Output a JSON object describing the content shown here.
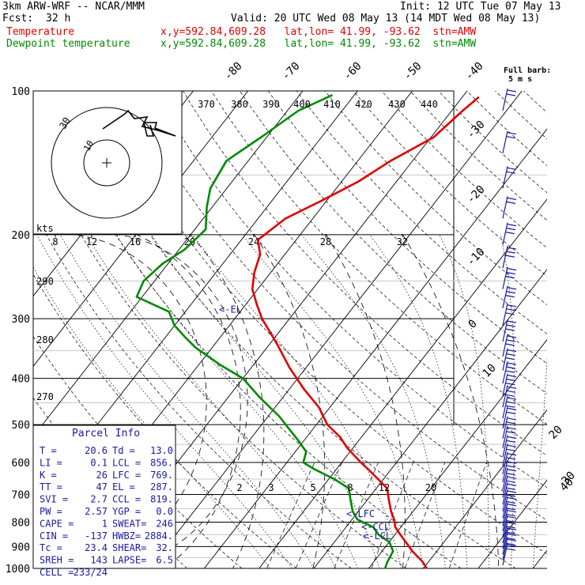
{
  "header": {
    "model": "3km ARW-WRF -- NCAR/MMM",
    "init": "Init: 12 UTC Tue 07 May 13",
    "fcst_label": "Fcst:",
    "fcst_value": "32 h",
    "valid": "Valid: 20 UTC Wed 08 May 13 (14 MDT Wed 08 May 13)",
    "temp_label": "Temperature",
    "temp_info": "x,y=592.84,609.28   lat,lon= 41.99, -93.62  stn=AMW",
    "dew_label": "Dewpoint temperature",
    "dew_info": "x,y=592.84,609.28   lat,lon= 41.99, -93.62  stn=AMW"
  },
  "colors": {
    "temperature": "#e00000",
    "dewpoint": "#008a00",
    "parcel_text": "#1a1aa0",
    "barbs": "#1a1aa0"
  },
  "chart_data": {
    "type": "line",
    "pressure_levels": [
      100,
      200,
      300,
      400,
      500,
      600,
      700,
      800,
      900,
      1000
    ],
    "ylim": [
      1000,
      100
    ],
    "log_scale_y": true,
    "temperature_ticks": [
      "-80",
      "-70",
      "-60",
      "-50",
      "-40",
      "-30",
      "-20",
      "-10",
      "0",
      "10",
      "20",
      "30",
      "40"
    ],
    "theta_labels": [
      "370",
      "380",
      "390",
      "400",
      "410",
      "420",
      "430",
      "440"
    ],
    "theta_labels_low": [
      "290",
      "280",
      "270"
    ],
    "mixing_ratio_labels": [
      "2",
      "3",
      "5",
      "8",
      "12",
      "20"
    ],
    "wind_speed_ticks": [
      "8",
      "12",
      "16",
      "20",
      "24",
      "28",
      "32"
    ],
    "wind_speed_unit": "kts",
    "barb_legend": [
      "Full barb:",
      "5 m s"
    ],
    "series": [
      {
        "name": "Temperature",
        "points": [
          [
            1000,
            20.6
          ],
          [
            970,
            19
          ],
          [
            920,
            15.5
          ],
          [
            880,
            13
          ],
          [
            850,
            11
          ],
          [
            820,
            9
          ],
          [
            790,
            7.7
          ],
          [
            760,
            6
          ],
          [
            720,
            4
          ],
          [
            680,
            2
          ],
          [
            650,
            -1
          ],
          [
            620,
            -4.2
          ],
          [
            600,
            -6.5
          ],
          [
            560,
            -11
          ],
          [
            530,
            -14
          ],
          [
            500,
            -18
          ],
          [
            460,
            -22
          ],
          [
            420,
            -27.5
          ],
          [
            380,
            -33
          ],
          [
            340,
            -38.5
          ],
          [
            300,
            -45
          ],
          [
            280,
            -48
          ],
          [
            260,
            -51
          ],
          [
            240,
            -53
          ],
          [
            220,
            -54.5
          ],
          [
            205,
            -57
          ],
          [
            200,
            -56.5
          ],
          [
            185,
            -55
          ],
          [
            170,
            -51
          ],
          [
            155,
            -47
          ],
          [
            140,
            -44
          ],
          [
            125,
            -39.5
          ],
          [
            110,
            -38
          ],
          [
            103,
            -37
          ]
        ]
      },
      {
        "name": "Dewpoint temperature",
        "points": [
          [
            1000,
            13
          ],
          [
            970,
            12.5
          ],
          [
            920,
            12
          ],
          [
            880,
            10
          ],
          [
            850,
            7
          ],
          [
            820,
            5
          ],
          [
            790,
            1
          ],
          [
            760,
            -1
          ],
          [
            720,
            -3
          ],
          [
            680,
            -5
          ],
          [
            650,
            -9
          ],
          [
            620,
            -14
          ],
          [
            600,
            -17
          ],
          [
            570,
            -18
          ],
          [
            540,
            -21
          ],
          [
            505,
            -25
          ],
          [
            480,
            -28
          ],
          [
            440,
            -34
          ],
          [
            400,
            -40
          ],
          [
            375,
            -46
          ],
          [
            345,
            -53
          ],
          [
            330,
            -56
          ],
          [
            310,
            -60
          ],
          [
            290,
            -63
          ],
          [
            270,
            -71
          ],
          [
            250,
            -72
          ],
          [
            230,
            -71
          ],
          [
            215,
            -69
          ],
          [
            195,
            -68
          ],
          [
            175,
            -71
          ],
          [
            160,
            -73
          ],
          [
            140,
            -74
          ],
          [
            125,
            -71
          ],
          [
            110,
            -68
          ],
          [
            102,
            -64
          ]
        ]
      }
    ],
    "levels_marked": [
      {
        "label": "<-EL",
        "pressure": 287
      },
      {
        "label": "<-LFC",
        "pressure": 769
      },
      {
        "label": "<-CCL",
        "pressure": 819
      },
      {
        "label": "<-LCL",
        "pressure": 856
      }
    ],
    "parcel_info": {
      "title": "Parcel Info",
      "rows": [
        [
          "T  =",
          "20.6",
          "Td =",
          "13.0"
        ],
        [
          "LI =",
          "0.1",
          "LCL =",
          "856."
        ],
        [
          "K  =",
          "26",
          "LFC =",
          "769."
        ],
        [
          "TT =",
          "47",
          "EL =",
          "287."
        ],
        [
          "SVI =",
          "2.7",
          "CCL =",
          "819."
        ],
        [
          "PW =",
          "2.57",
          "YGP =",
          "0.0"
        ],
        [
          "CAPE =",
          "1",
          "SWEAT=",
          "246"
        ],
        [
          "CIN =",
          "-137",
          "HWBZ=",
          "2884."
        ],
        [
          "Tc =",
          "23.4",
          "SHEAR=",
          "32."
        ],
        [
          "SREH =",
          "143",
          "LAPSE=",
          "6.5"
        ],
        [
          "CELL =",
          "233/24",
          "",
          ""
        ]
      ]
    },
    "hodograph_labels": [
      "30",
      "10"
    ]
  }
}
